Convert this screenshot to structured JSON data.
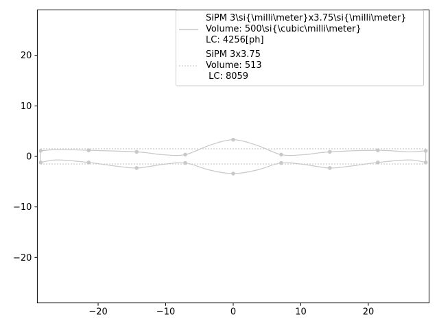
{
  "chart_data": {
    "type": "line",
    "xlim": [
      -29,
      29
    ],
    "ylim": [
      -29,
      29
    ],
    "x_ticks": [
      -20,
      -10,
      0,
      10,
      20
    ],
    "y_ticks": [
      -20,
      -10,
      0,
      10,
      20
    ],
    "x_tick_labels": [
      "−20",
      "−10",
      "0",
      "10",
      "20"
    ],
    "y_tick_labels": [
      "−20",
      "−10",
      "0",
      "10",
      "20"
    ],
    "grid": false,
    "legend_position": "top-right",
    "series": [
      {
        "name": "SiPM 3\\si{\\milli\\meter}x3.75\\si{\\milli\\meter}\nVolume: 500\\si{\\cubic\\milli\\meter}\nLC: 4256[ph]",
        "style": "solid",
        "color": "#c8c8c8",
        "top_curve": [
          [
            -28.5,
            1.1
          ],
          [
            -26,
            1.35
          ],
          [
            -21.4,
            1.2
          ],
          [
            -14.3,
            0.9
          ],
          [
            -10.5,
            0.35
          ],
          [
            -7.1,
            0.35
          ],
          [
            -3.5,
            2.2
          ],
          [
            0,
            3.3
          ],
          [
            3.5,
            2.2
          ],
          [
            7.1,
            0.35
          ],
          [
            10.5,
            0.35
          ],
          [
            14.3,
            0.9
          ],
          [
            21.4,
            1.2
          ],
          [
            26,
            0.9
          ],
          [
            28.5,
            1.1
          ]
        ],
        "top_markers": [
          [
            -28.5,
            1.1
          ],
          [
            -21.4,
            1.2
          ],
          [
            -14.3,
            0.9
          ],
          [
            -7.1,
            0.35
          ],
          [
            0,
            3.3
          ],
          [
            7.1,
            0.35
          ],
          [
            14.3,
            0.9
          ],
          [
            21.4,
            1.2
          ],
          [
            28.5,
            1.1
          ]
        ],
        "bottom_curve": [
          [
            -28.5,
            -1.2
          ],
          [
            -26,
            -0.7
          ],
          [
            -21.4,
            -1.2
          ],
          [
            -17.5,
            -1.9
          ],
          [
            -14.3,
            -2.3
          ],
          [
            -10.5,
            -1.6
          ],
          [
            -7.1,
            -1.3
          ],
          [
            -3.5,
            -2.7
          ],
          [
            0,
            -3.4
          ],
          [
            3.5,
            -2.7
          ],
          [
            7.1,
            -1.3
          ],
          [
            10.5,
            -1.6
          ],
          [
            14.3,
            -2.3
          ],
          [
            17.5,
            -1.9
          ],
          [
            21.4,
            -1.2
          ],
          [
            26,
            -0.7
          ],
          [
            28.5,
            -1.2
          ]
        ],
        "bottom_markers": [
          [
            -28.5,
            -1.2
          ],
          [
            -21.4,
            -1.2
          ],
          [
            -14.3,
            -2.3
          ],
          [
            -7.1,
            -1.3
          ],
          [
            0,
            -3.4
          ],
          [
            7.1,
            -1.3
          ],
          [
            14.3,
            -2.3
          ],
          [
            21.4,
            -1.2
          ],
          [
            28.5,
            -1.2
          ]
        ]
      },
      {
        "name": "SiPM 3x3.75\nVolume: 513\n LC: 8059",
        "style": "dotted",
        "color": "#c8c8c8",
        "top_y": 1.5,
        "bottom_y": -1.5,
        "x_range": [
          -28.5,
          28.5
        ]
      }
    ]
  }
}
